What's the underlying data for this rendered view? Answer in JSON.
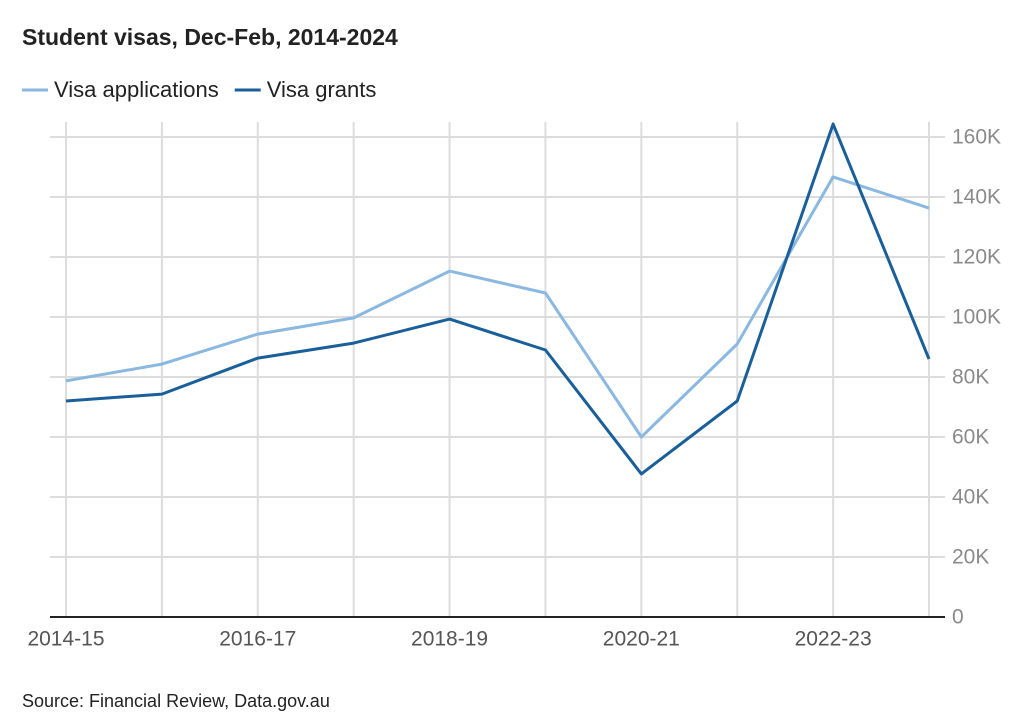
{
  "chart_data": {
    "type": "line",
    "title": "Student visas, Dec-Feb, 2014-2024",
    "categories": [
      "2014-15",
      null,
      "2016-17",
      null,
      "2018-19",
      null,
      "2020-21",
      null,
      "2022-23",
      null
    ],
    "series": [
      {
        "name": "Visa applications",
        "color": "#8ab8e0",
        "values": [
          78700,
          84300,
          94300,
          99700,
          115300,
          108000,
          60000,
          91000,
          146700,
          136300
        ]
      },
      {
        "name": "Visa grants",
        "color": "#1a5f99",
        "values": [
          72000,
          74300,
          86300,
          91300,
          99300,
          89000,
          47700,
          72000,
          164300,
          86000
        ]
      }
    ],
    "ylim": [
      0,
      165000
    ],
    "yticks": [
      0,
      {
        "value": 20000,
        "label": "20K"
      },
      {
        "value": 40000,
        "label": "40K"
      },
      {
        "value": 60000,
        "label": "60K"
      },
      {
        "value": 80000,
        "label": "80K"
      },
      {
        "value": 100000,
        "label": "100K"
      },
      {
        "value": 120000,
        "label": "120K"
      },
      {
        "value": 140000,
        "label": "140K"
      },
      {
        "value": 160000,
        "label": "160K"
      }
    ],
    "grid": true,
    "source": "Source: Financial Review, Data.gov.au"
  }
}
